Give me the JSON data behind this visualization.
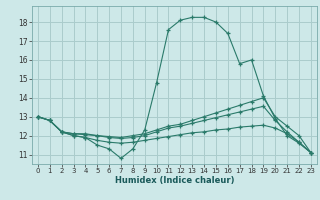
{
  "title": "",
  "xlabel": "Humidex (Indice chaleur)",
  "bg_color": "#cde8e8",
  "grid_color": "#aacccc",
  "line_color": "#2a7a6a",
  "spine_color": "#7aaaaa",
  "xlim": [
    -0.5,
    23.5
  ],
  "ylim": [
    10.5,
    18.85
  ],
  "yticks": [
    11,
    12,
    13,
    14,
    15,
    16,
    17,
    18
  ],
  "xticks": [
    0,
    1,
    2,
    3,
    4,
    5,
    6,
    7,
    8,
    9,
    10,
    11,
    12,
    13,
    14,
    15,
    16,
    17,
    18,
    19,
    20,
    21,
    22,
    23
  ],
  "lines": [
    {
      "x": [
        0,
        1,
        2,
        3,
        4,
        5,
        6,
        7,
        8,
        9,
        10,
        11,
        12,
        13,
        14,
        15,
        16,
        17,
        18,
        19,
        20,
        21,
        22,
        23
      ],
      "y": [
        13.0,
        12.8,
        12.2,
        12.0,
        11.9,
        11.5,
        11.3,
        10.8,
        11.3,
        12.3,
        14.8,
        17.6,
        18.1,
        18.25,
        18.25,
        18.0,
        17.4,
        15.8,
        16.0,
        14.1,
        12.9,
        12.0,
        11.6,
        11.1
      ]
    },
    {
      "x": [
        0,
        1,
        2,
        3,
        4,
        5,
        6,
        7,
        8,
        9,
        10,
        11,
        12,
        13,
        14,
        15,
        16,
        17,
        18,
        19,
        20,
        21,
        22,
        23
      ],
      "y": [
        13.0,
        12.8,
        12.2,
        12.1,
        12.1,
        12.0,
        11.95,
        11.9,
        12.0,
        12.1,
        12.3,
        12.5,
        12.6,
        12.8,
        13.0,
        13.2,
        13.4,
        13.6,
        13.8,
        14.0,
        13.0,
        12.5,
        12.0,
        11.1
      ]
    },
    {
      "x": [
        0,
        1,
        2,
        3,
        4,
        5,
        6,
        7,
        8,
        9,
        10,
        11,
        12,
        13,
        14,
        15,
        16,
        17,
        18,
        19,
        20,
        21,
        22,
        23
      ],
      "y": [
        13.0,
        12.8,
        12.2,
        12.1,
        12.05,
        12.0,
        11.9,
        11.85,
        11.9,
        12.0,
        12.2,
        12.4,
        12.5,
        12.65,
        12.8,
        12.95,
        13.1,
        13.25,
        13.4,
        13.55,
        12.8,
        12.2,
        11.65,
        11.1
      ]
    },
    {
      "x": [
        0,
        1,
        2,
        3,
        4,
        5,
        6,
        7,
        8,
        9,
        10,
        11,
        12,
        13,
        14,
        15,
        16,
        17,
        18,
        19,
        20,
        21,
        22,
        23
      ],
      "y": [
        13.0,
        12.8,
        12.2,
        12.0,
        11.9,
        11.75,
        11.65,
        11.6,
        11.65,
        11.75,
        11.85,
        11.95,
        12.05,
        12.15,
        12.2,
        12.3,
        12.35,
        12.45,
        12.5,
        12.55,
        12.4,
        12.1,
        11.65,
        11.1
      ]
    }
  ]
}
